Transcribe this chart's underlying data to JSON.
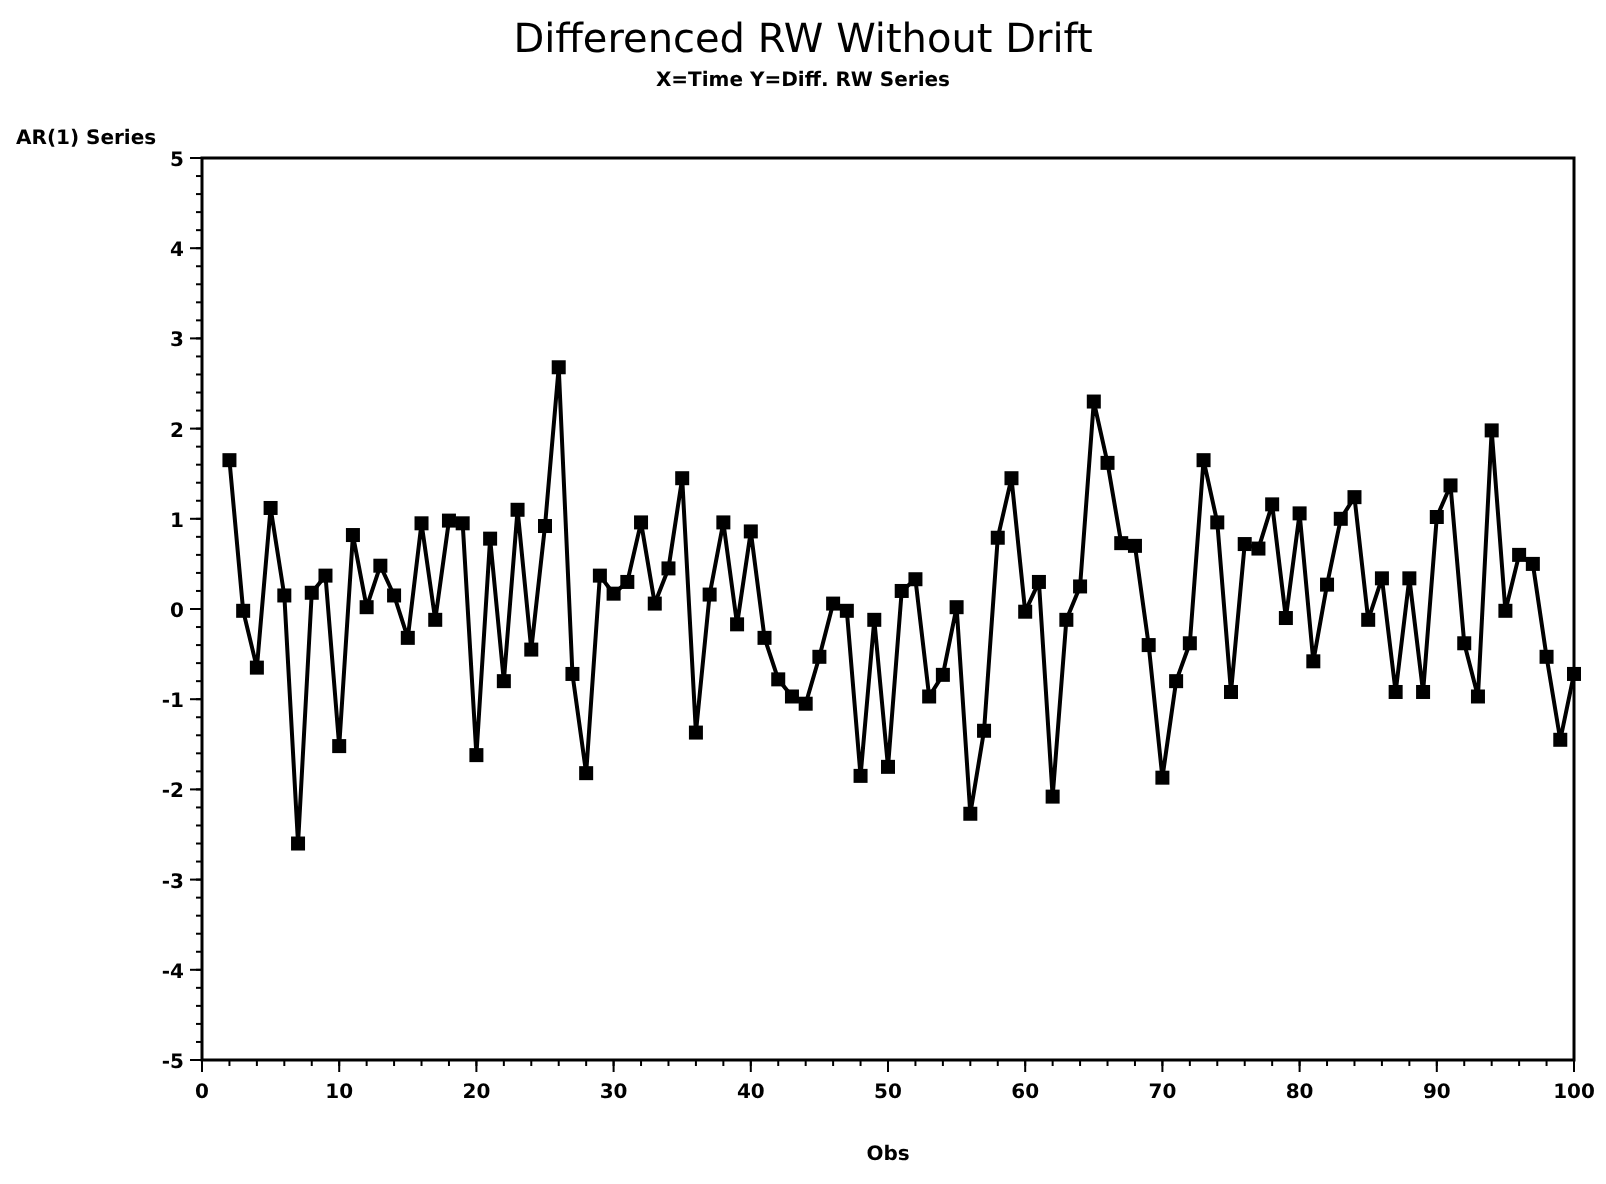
{
  "chart_data": {
    "type": "line",
    "title": "Differenced RW Without Drift",
    "subtitle": "X=Time Y=Diff. RW Series",
    "xlabel": "Obs",
    "ylabel": "AR(1) Series",
    "marker": "square",
    "line_style": "solid",
    "grid": false,
    "x": [
      2,
      3,
      4,
      5,
      6,
      7,
      8,
      9,
      10,
      11,
      12,
      13,
      14,
      15,
      16,
      17,
      18,
      19,
      20,
      21,
      22,
      23,
      24,
      25,
      26,
      27,
      28,
      29,
      30,
      31,
      32,
      33,
      34,
      35,
      36,
      37,
      38,
      39,
      40,
      41,
      42,
      43,
      44,
      45,
      46,
      47,
      48,
      49,
      50,
      51,
      52,
      53,
      54,
      55,
      56,
      57,
      58,
      59,
      60,
      61,
      62,
      63,
      64,
      65,
      66,
      67,
      68,
      69,
      70,
      71,
      72,
      73,
      74,
      75,
      76,
      77,
      78,
      79,
      80,
      81,
      82,
      83,
      84,
      85,
      86,
      87,
      88,
      89,
      90,
      91,
      92,
      93,
      94,
      95,
      96,
      97,
      98,
      99,
      100
    ],
    "series": [
      {
        "color": "#000000",
        "values": [
          1.65,
          -0.02,
          -0.65,
          1.12,
          0.15,
          -2.6,
          0.18,
          0.37,
          -1.52,
          0.82,
          0.02,
          0.48,
          0.15,
          -0.32,
          0.95,
          -0.12,
          0.98,
          0.95,
          -1.62,
          0.78,
          -0.8,
          1.1,
          -0.45,
          0.92,
          2.68,
          -0.72,
          -1.82,
          0.37,
          0.17,
          0.3,
          0.96,
          0.06,
          0.45,
          1.45,
          -1.37,
          0.16,
          0.96,
          -0.17,
          0.86,
          -0.32,
          -0.78,
          -0.97,
          -1.05,
          -0.53,
          0.06,
          -0.02,
          -1.85,
          -0.12,
          -1.75,
          0.2,
          0.33,
          -0.97,
          -0.73,
          0.02,
          -2.27,
          -1.35,
          0.79,
          1.45,
          -0.03,
          0.3,
          -2.08,
          -0.12,
          0.25,
          2.3,
          1.62,
          0.73,
          0.7,
          -0.4,
          -1.87,
          -0.8,
          -0.38,
          1.65,
          0.96,
          -0.92,
          0.72,
          0.67,
          1.16,
          -0.1,
          1.06,
          -0.58,
          0.27,
          1.0,
          1.24,
          -0.12,
          0.34,
          -0.92,
          0.34,
          -0.92,
          1.02,
          1.37,
          -0.38,
          -0.97,
          1.98,
          -0.02,
          0.6,
          0.5,
          -0.53,
          -1.45,
          -0.72
        ]
      }
    ],
    "xlim": [
      0,
      100
    ],
    "xticks": [
      0,
      10,
      20,
      30,
      40,
      50,
      60,
      70,
      80,
      90,
      100
    ],
    "ylim": [
      -5,
      5
    ],
    "yticks": [
      -5,
      -4,
      -3,
      -2,
      -1,
      0,
      1,
      2,
      3,
      4,
      5
    ]
  }
}
